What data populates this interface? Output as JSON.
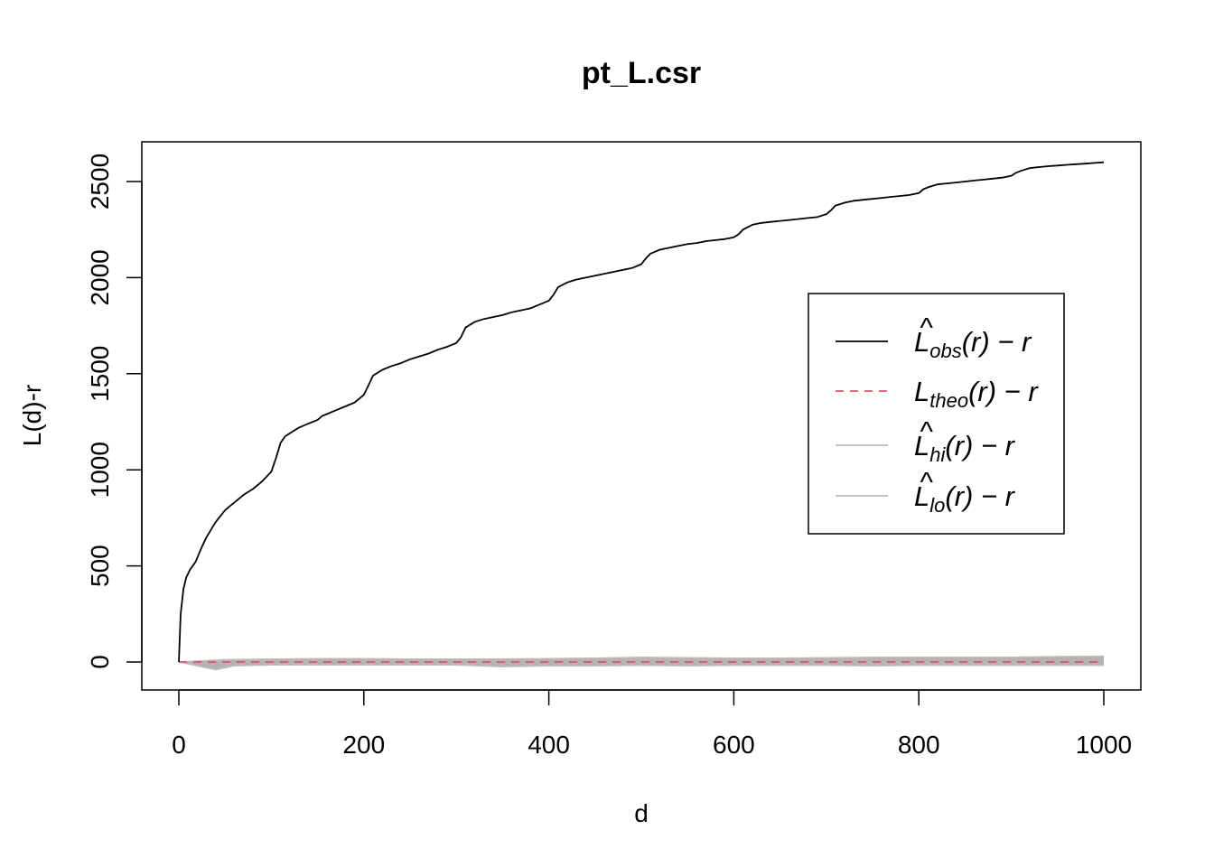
{
  "chart_data": {
    "type": "line",
    "title": "pt_L.csr",
    "xlabel": "d",
    "ylabel": "L(d)-r",
    "xlim": [
      0,
      1000
    ],
    "ylim": [
      -150,
      2700
    ],
    "x_ticks": [
      "0",
      "200",
      "400",
      "600",
      "800",
      "1000"
    ],
    "y_ticks": [
      "0",
      "500",
      "1000",
      "1500",
      "2000",
      "2500"
    ],
    "grid": false,
    "legend_position": "right",
    "legend": [
      {
        "base": "L",
        "hat": "^",
        "sub": "obs",
        "suffix": "(r) − r",
        "color": "#000000",
        "dash": "solid"
      },
      {
        "base": "L",
        "hat": "",
        "sub": "theo",
        "suffix": "(r) − r",
        "color": "#DF536B",
        "dash": "dashed"
      },
      {
        "base": "L",
        "hat": "^",
        "sub": "hi",
        "suffix": "(r) − r",
        "color": "#BEBEBE",
        "dash": "solid"
      },
      {
        "base": "L",
        "hat": "^",
        "sub": "lo",
        "suffix": "(r) − r",
        "color": "#BEBEBE",
        "dash": "solid"
      }
    ],
    "series": [
      {
        "key": "obs",
        "color": "#000000",
        "x": [
          0,
          2,
          5,
          8,
          12,
          18,
          25,
          30,
          35,
          40,
          45,
          50,
          55,
          60,
          70,
          80,
          90,
          100,
          105,
          110,
          115,
          120,
          130,
          140,
          150,
          155,
          160,
          170,
          180,
          190,
          200,
          205,
          210,
          220,
          230,
          240,
          250,
          260,
          270,
          280,
          290,
          300,
          305,
          310,
          320,
          330,
          340,
          350,
          360,
          370,
          380,
          390,
          400,
          405,
          410,
          420,
          430,
          440,
          450,
          460,
          470,
          480,
          490,
          500,
          505,
          510,
          520,
          530,
          540,
          550,
          560,
          570,
          580,
          590,
          600,
          605,
          610,
          620,
          630,
          640,
          650,
          660,
          670,
          680,
          690,
          700,
          705,
          710,
          720,
          730,
          740,
          750,
          760,
          770,
          780,
          790,
          800,
          805,
          810,
          820,
          830,
          840,
          850,
          860,
          870,
          880,
          890,
          900,
          905,
          910,
          920,
          930,
          940,
          950,
          960,
          970,
          980,
          990,
          1000
        ],
        "y": [
          0,
          250,
          380,
          440,
          480,
          520,
          600,
          650,
          690,
          730,
          760,
          790,
          810,
          830,
          870,
          900,
          940,
          990,
          1060,
          1140,
          1175,
          1190,
          1220,
          1240,
          1260,
          1280,
          1290,
          1310,
          1330,
          1350,
          1390,
          1440,
          1490,
          1520,
          1540,
          1555,
          1575,
          1590,
          1605,
          1625,
          1640,
          1660,
          1690,
          1740,
          1770,
          1785,
          1795,
          1805,
          1820,
          1830,
          1840,
          1860,
          1880,
          1910,
          1950,
          1975,
          1990,
          2000,
          2010,
          2020,
          2030,
          2040,
          2050,
          2070,
          2100,
          2125,
          2145,
          2155,
          2165,
          2175,
          2180,
          2190,
          2195,
          2200,
          2210,
          2225,
          2250,
          2275,
          2285,
          2290,
          2295,
          2300,
          2305,
          2310,
          2315,
          2330,
          2350,
          2375,
          2390,
          2400,
          2405,
          2410,
          2415,
          2420,
          2425,
          2430,
          2440,
          2460,
          2470,
          2485,
          2490,
          2495,
          2500,
          2505,
          2510,
          2515,
          2520,
          2530,
          2545,
          2555,
          2570,
          2575,
          2580,
          2583,
          2587,
          2590,
          2593,
          2597,
          2600
        ]
      },
      {
        "key": "theo",
        "color": "#DF536B",
        "x": [
          0,
          1000
        ],
        "y": [
          0,
          0
        ]
      },
      {
        "key": "hi",
        "color": "#BEBEBE",
        "x": [
          0,
          50,
          100,
          150,
          200,
          250,
          300,
          350,
          400,
          450,
          500,
          550,
          600,
          650,
          700,
          750,
          800,
          850,
          900,
          950,
          1000
        ],
        "y": [
          0,
          12,
          15,
          18,
          18,
          15,
          15,
          16,
          18,
          20,
          25,
          22,
          20,
          20,
          22,
          25,
          25,
          25,
          25,
          28,
          30
        ]
      },
      {
        "key": "lo",
        "color": "#BEBEBE",
        "x": [
          0,
          20,
          40,
          60,
          100,
          150,
          200,
          250,
          300,
          350,
          400,
          450,
          500,
          550,
          600,
          650,
          700,
          750,
          800,
          850,
          900,
          950,
          1000
        ],
        "y": [
          0,
          -20,
          -40,
          -20,
          -15,
          -15,
          -15,
          -15,
          -15,
          -25,
          -20,
          -20,
          -18,
          -20,
          -18,
          -18,
          -18,
          -20,
          -18,
          -18,
          -18,
          -18,
          -18
        ]
      }
    ]
  }
}
